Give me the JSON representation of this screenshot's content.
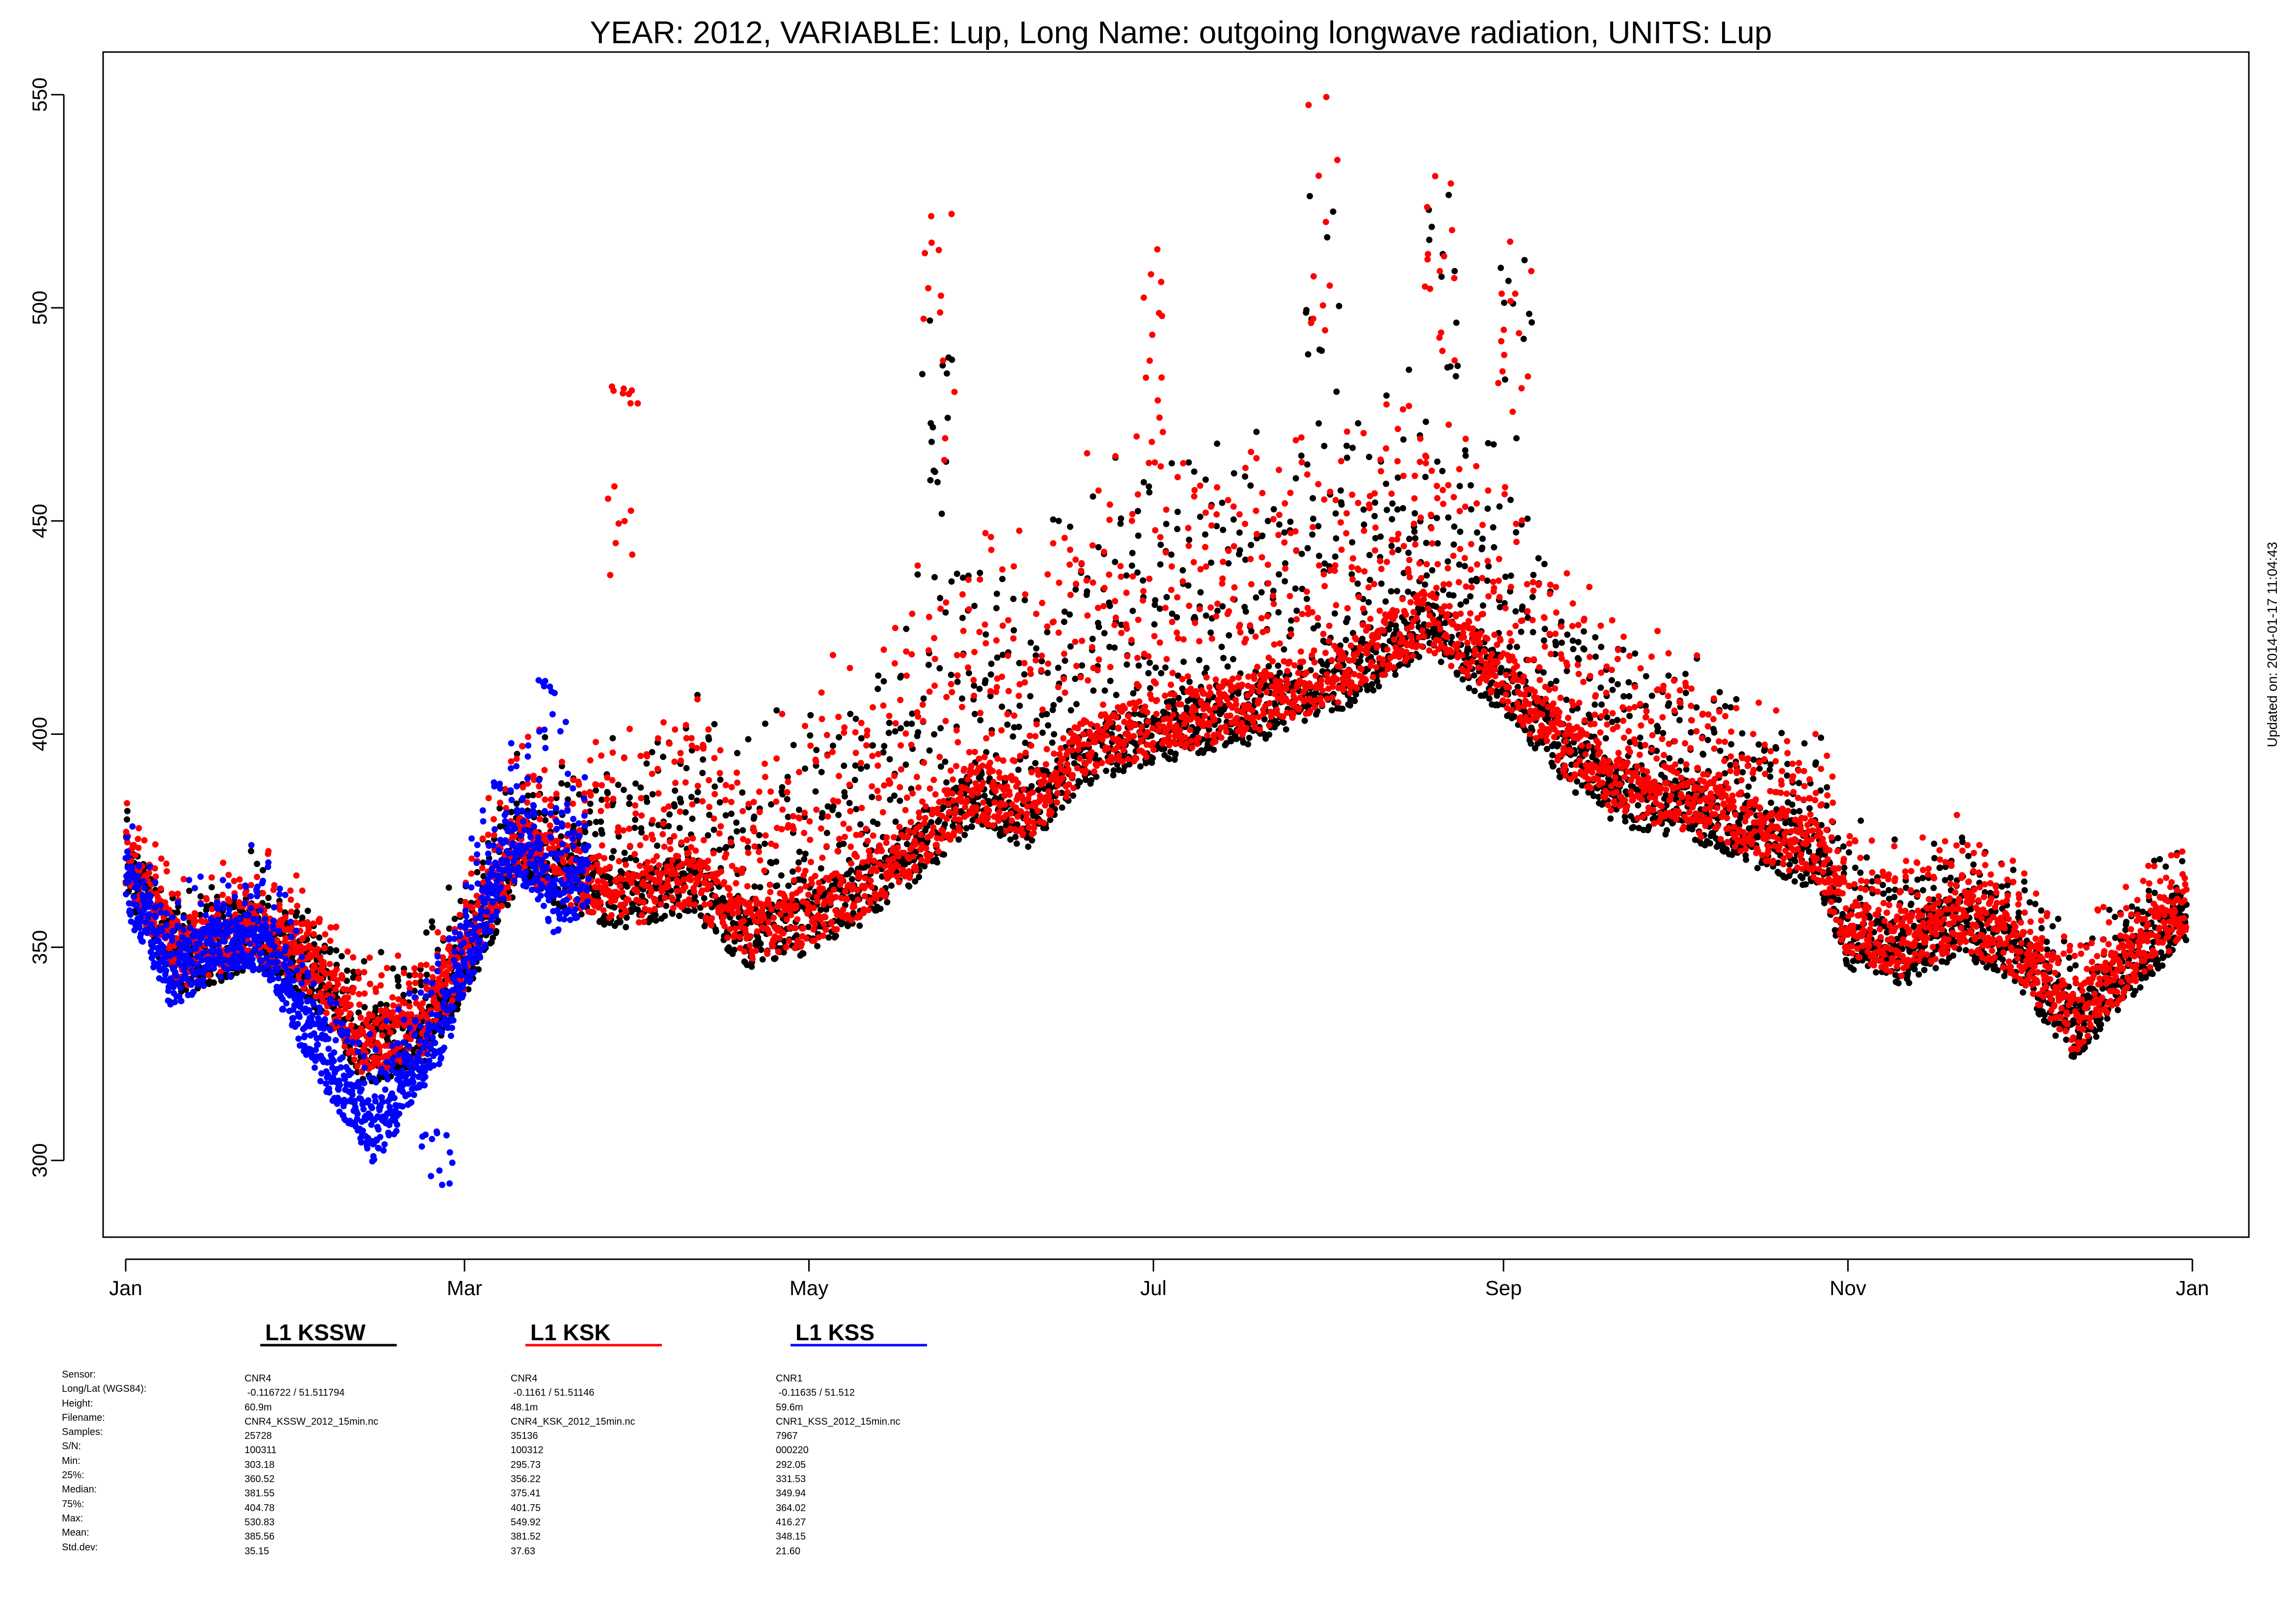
{
  "chart_data": {
    "type": "scatter",
    "title": "YEAR: 2012, VARIABLE: Lup, Long Name: outgoing  longwave  radiation, UNITS: Lup",
    "xlabel": "",
    "ylabel": "",
    "x_ticks": [
      "Jan",
      "Mar",
      "May",
      "Jul",
      "Sep",
      "Nov",
      "Jan"
    ],
    "x_tick_days": [
      0,
      60,
      121,
      182,
      244,
      305,
      366
    ],
    "xlim_days": [
      -4,
      376
    ],
    "y_ticks": [
      300,
      350,
      400,
      450,
      500,
      550
    ],
    "ylim": [
      282,
      560
    ],
    "grid": false,
    "legend_position": "bottom-left",
    "updated_note": "Updated on: 2014-01-17 11:04:43",
    "series": [
      {
        "name": "L1 KSSW",
        "color": "#000000",
        "baseline": [
          [
            0,
            368
          ],
          [
            10,
            345
          ],
          [
            22,
            352
          ],
          [
            32,
            345
          ],
          [
            42,
            325
          ],
          [
            52,
            328
          ],
          [
            60,
            345
          ],
          [
            70,
            372
          ],
          [
            78,
            365
          ],
          [
            90,
            360
          ],
          [
            100,
            365
          ],
          [
            110,
            352
          ],
          [
            120,
            355
          ],
          [
            130,
            362
          ],
          [
            140,
            372
          ],
          [
            150,
            385
          ],
          [
            160,
            380
          ],
          [
            170,
            395
          ],
          [
            182,
            400
          ],
          [
            190,
            402
          ],
          [
            200,
            405
          ],
          [
            215,
            412
          ],
          [
            230,
            425
          ],
          [
            244,
            412
          ],
          [
            255,
            395
          ],
          [
            265,
            385
          ],
          [
            275,
            383
          ],
          [
            290,
            375
          ],
          [
            300,
            370
          ],
          [
            305,
            352
          ],
          [
            315,
            348
          ],
          [
            325,
            355
          ],
          [
            335,
            348
          ],
          [
            345,
            330
          ],
          [
            355,
            345
          ],
          [
            365,
            358
          ]
        ],
        "peaks": [
          [
            144,
            508
          ],
          [
            212,
            530
          ],
          [
            233,
            528
          ],
          [
            246,
            516
          ]
        ]
      },
      {
        "name": "L1 KSK",
        "color": "#ff0000",
        "baseline": [
          [
            0,
            370
          ],
          [
            10,
            347
          ],
          [
            22,
            354
          ],
          [
            32,
            347
          ],
          [
            42,
            327
          ],
          [
            52,
            330
          ],
          [
            60,
            347
          ],
          [
            70,
            374
          ],
          [
            78,
            367
          ],
          [
            90,
            362
          ],
          [
            100,
            367
          ],
          [
            110,
            354
          ],
          [
            120,
            357
          ],
          [
            130,
            364
          ],
          [
            140,
            374
          ],
          [
            150,
            387
          ],
          [
            160,
            382
          ],
          [
            170,
            397
          ],
          [
            182,
            402
          ],
          [
            190,
            404
          ],
          [
            200,
            407
          ],
          [
            215,
            414
          ],
          [
            230,
            427
          ],
          [
            244,
            414
          ],
          [
            255,
            397
          ],
          [
            265,
            387
          ],
          [
            275,
            385
          ],
          [
            290,
            377
          ],
          [
            300,
            372
          ],
          [
            305,
            354
          ],
          [
            315,
            350
          ],
          [
            325,
            357
          ],
          [
            335,
            350
          ],
          [
            345,
            332
          ],
          [
            355,
            347
          ],
          [
            365,
            360
          ]
        ],
        "peaks": [
          [
            88,
            482
          ],
          [
            144,
            524
          ],
          [
            212,
            550
          ],
          [
            233,
            533
          ],
          [
            246,
            519
          ],
          [
            182,
            519
          ]
        ]
      },
      {
        "name": "L1 KSS",
        "color": "#0000ff",
        "x_range_days": [
          0,
          82
        ],
        "baseline": [
          [
            0,
            365
          ],
          [
            8,
            343
          ],
          [
            16,
            349
          ],
          [
            24,
            352
          ],
          [
            32,
            330
          ],
          [
            38,
            318
          ],
          [
            44,
            306
          ],
          [
            50,
            318
          ],
          [
            56,
            330
          ],
          [
            62,
            352
          ],
          [
            68,
            372
          ],
          [
            72,
            370
          ],
          [
            76,
            360
          ],
          [
            80,
            364
          ],
          [
            82,
            367
          ]
        ],
        "peaks": [
          [
            55,
            292
          ],
          [
            75,
            413
          ]
        ]
      }
    ]
  },
  "legend": {
    "entries": [
      {
        "label": "L1 KSSW",
        "color": "#000000"
      },
      {
        "label": "L1 KSK",
        "color": "#ff0000"
      },
      {
        "label": "L1 KSS",
        "color": "#0000ff"
      }
    ]
  },
  "stats": {
    "labels": [
      "Sensor:",
      "Long/Lat (WGS84):",
      "Height:",
      "Filename:",
      "Samples:",
      "S/N:",
      "Min:",
      "25%:",
      "Median:",
      "75%:",
      "Max:",
      "Mean:",
      "Std.dev:"
    ],
    "columns": [
      [
        "CNR4",
        " -0.116722 / 51.511794",
        "60.9m",
        "CNR4_KSSW_2012_15min.nc",
        "25728",
        "100311",
        "303.18",
        "360.52",
        "381.55",
        "404.78",
        "530.83",
        "385.56",
        "35.15"
      ],
      [
        "CNR4",
        " -0.1161 / 51.51146",
        "48.1m",
        "CNR4_KSK_2012_15min.nc",
        "35136",
        "100312",
        "295.73",
        "356.22",
        "375.41",
        "401.75",
        "549.92",
        "381.52",
        "37.63"
      ],
      [
        "CNR1",
        " -0.11635 / 51.512",
        "59.6m",
        "CNR1_KSS_2012_15min.nc",
        "7967",
        "000220",
        "292.05",
        "331.53",
        "349.94",
        "364.02",
        "416.27",
        "348.15",
        "21.60"
      ]
    ]
  }
}
